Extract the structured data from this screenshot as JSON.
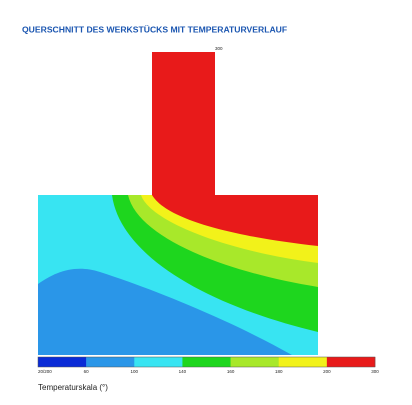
{
  "title": "QUERSCHNITT DES WERKSTÜCKS MIT TEMPERATURVERLAUF",
  "top_label": "300",
  "scale": {
    "colors": [
      "#0a2bd6",
      "#2a96e8",
      "#38e4f2",
      "#1ed61e",
      "#a8e82a",
      "#f2f21a",
      "#e81a1a"
    ],
    "labels": [
      "20/200",
      "60",
      "100",
      "140",
      "160",
      "180",
      "200",
      "300"
    ],
    "caption": "Temperaturskala (°)"
  }
}
